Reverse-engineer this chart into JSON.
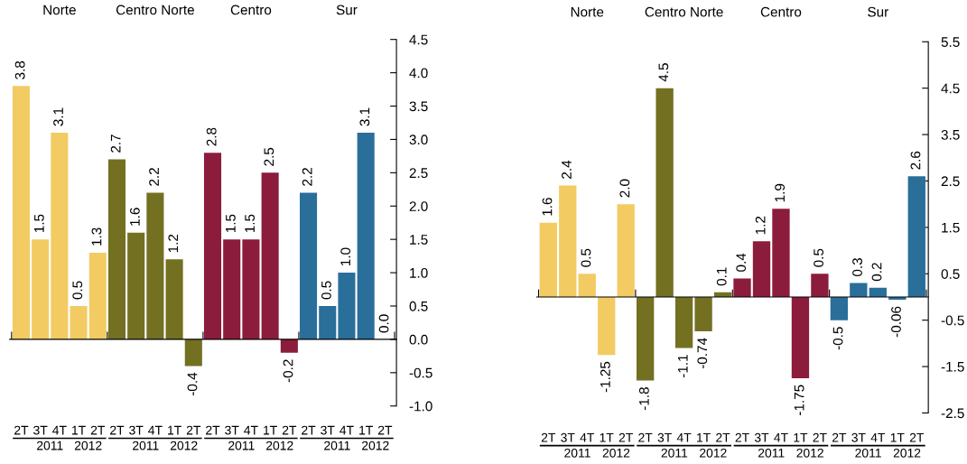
{
  "chart_data": [
    {
      "type": "bar",
      "categories": [
        "2T",
        "3T",
        "4T",
        "1T",
        "2T",
        "2T",
        "3T",
        "4T",
        "1T",
        "2T",
        "2T",
        "3T",
        "4T",
        "1T",
        "2T",
        "2T",
        "3T",
        "4T",
        "1T",
        "2T"
      ],
      "series": [
        {
          "color": "#f2cb63",
          "values": [
            3.8,
            1.5,
            3.1,
            0.5,
            1.3,
            null,
            null,
            null,
            null,
            null,
            null,
            null,
            null,
            null,
            null,
            null,
            null,
            null,
            null,
            null
          ],
          "value_labels": [
            "3.8",
            "1.5",
            "3.1",
            "0.5",
            "1.3",
            null,
            null,
            null,
            null,
            null,
            null,
            null,
            null,
            null,
            null,
            null,
            null,
            null,
            null,
            null
          ]
        },
        {
          "color": "#737022",
          "values": [
            null,
            null,
            null,
            null,
            null,
            2.7,
            1.6,
            2.2,
            1.2,
            -0.4,
            null,
            null,
            null,
            null,
            null,
            null,
            null,
            null,
            null,
            null
          ],
          "value_labels": [
            null,
            null,
            null,
            null,
            null,
            "2.7",
            "1.6",
            "2.2",
            "1.2",
            "-0.4",
            null,
            null,
            null,
            null,
            null,
            null,
            null,
            null,
            null,
            null
          ]
        },
        {
          "color": "#8c1c3c",
          "values": [
            null,
            null,
            null,
            null,
            null,
            null,
            null,
            null,
            null,
            null,
            2.8,
            1.5,
            1.5,
            2.5,
            -0.2,
            null,
            null,
            null,
            null,
            null
          ],
          "value_labels": [
            null,
            null,
            null,
            null,
            null,
            null,
            null,
            null,
            null,
            null,
            "2.8",
            "1.5",
            "1.5",
            "2.5",
            "-0.2",
            null,
            null,
            null,
            null,
            null
          ]
        },
        {
          "color": "#2a6e9a",
          "values": [
            null,
            null,
            null,
            null,
            null,
            null,
            null,
            null,
            null,
            null,
            null,
            null,
            null,
            null,
            null,
            2.2,
            0.5,
            1.0,
            3.1,
            0.0
          ],
          "value_labels": [
            null,
            null,
            null,
            null,
            null,
            null,
            null,
            null,
            null,
            null,
            null,
            null,
            null,
            null,
            null,
            "2.2",
            "0.5",
            "1.0",
            "3.1",
            "0.0"
          ]
        }
      ],
      "ylim": [
        -1.0,
        4.5
      ],
      "yticks": [
        {
          "value": -1,
          "label": "-1.0"
        },
        -0.5,
        {
          "value": 0,
          "label": "0.0"
        },
        0.5,
        {
          "value": 1,
          "label": "1.0"
        },
        1.5,
        {
          "value": 2,
          "label": "2.0"
        },
        2.5,
        {
          "value": 3,
          "label": "3.0"
        },
        3.5,
        {
          "value": 4,
          "label": "4.0"
        },
        4.5
      ],
      "annotations": [
        "Norte",
        "Centro Norte",
        "Centro",
        "Sur",
        "2011",
        "2012",
        "2011",
        "2012",
        "2011",
        "2012",
        "2011",
        "2012"
      ]
    },
    {
      "type": "bar",
      "categories": [
        "2T",
        "3T",
        "4T",
        "1T",
        "2T",
        "2T",
        "3T",
        "4T",
        "1T",
        "2T",
        "2T",
        "3T",
        "4T",
        "1T",
        "2T",
        "2T",
        "3T",
        "4T",
        "1T",
        "2T"
      ],
      "series": [
        {
          "color": "#f2cb63",
          "values": [
            1.6,
            2.4,
            0.5,
            -1.25,
            2.0,
            null,
            null,
            null,
            null,
            null,
            null,
            null,
            null,
            null,
            null,
            null,
            null,
            null,
            null,
            null
          ],
          "value_labels": [
            "1.6",
            "2.4",
            "0.5",
            "-1.25",
            "2.0",
            null,
            null,
            null,
            null,
            null,
            null,
            null,
            null,
            null,
            null,
            null,
            null,
            null,
            null,
            null
          ]
        },
        {
          "color": "#737022",
          "values": [
            null,
            null,
            null,
            null,
            null,
            -1.8,
            4.5,
            -1.1,
            -0.74,
            0.1,
            null,
            null,
            null,
            null,
            null,
            null,
            null,
            null,
            null,
            null
          ],
          "value_labels": [
            null,
            null,
            null,
            null,
            null,
            "-1.8",
            "4.5",
            "-1.1",
            "-0.74",
            "0.1",
            null,
            null,
            null,
            null,
            null,
            null,
            null,
            null,
            null,
            null
          ]
        },
        {
          "color": "#8c1c3c",
          "values": [
            null,
            null,
            null,
            null,
            null,
            null,
            null,
            null,
            null,
            null,
            0.4,
            1.2,
            1.9,
            -1.75,
            0.5,
            null,
            null,
            null,
            null,
            null
          ],
          "value_labels": [
            null,
            null,
            null,
            null,
            null,
            null,
            null,
            null,
            null,
            null,
            "0.4",
            "1.2",
            "1.9",
            "-1.75",
            "0.5",
            null,
            null,
            null,
            null,
            null
          ]
        },
        {
          "color": "#2a6e9a",
          "values": [
            null,
            null,
            null,
            null,
            null,
            null,
            null,
            null,
            null,
            null,
            null,
            null,
            null,
            null,
            null,
            -0.5,
            0.3,
            0.2,
            -0.06,
            2.6
          ],
          "value_labels": [
            null,
            null,
            null,
            null,
            null,
            null,
            null,
            null,
            null,
            null,
            null,
            null,
            null,
            null,
            null,
            "-0.5",
            "0.3",
            "0.2",
            "-0.06",
            "2.6"
          ]
        }
      ],
      "ylim": [
        -2.5,
        5.5
      ],
      "yticks": [
        -2.5,
        -1.5,
        -0.5,
        0.5,
        1.5,
        2.5,
        3.5,
        4.5,
        5.5
      ],
      "annotations": [
        "Norte",
        "Centro Norte",
        "Centro",
        "Sur",
        "2011",
        "2012",
        "2011",
        "2012",
        "2011",
        "2012",
        "2011",
        "2012"
      ]
    }
  ]
}
